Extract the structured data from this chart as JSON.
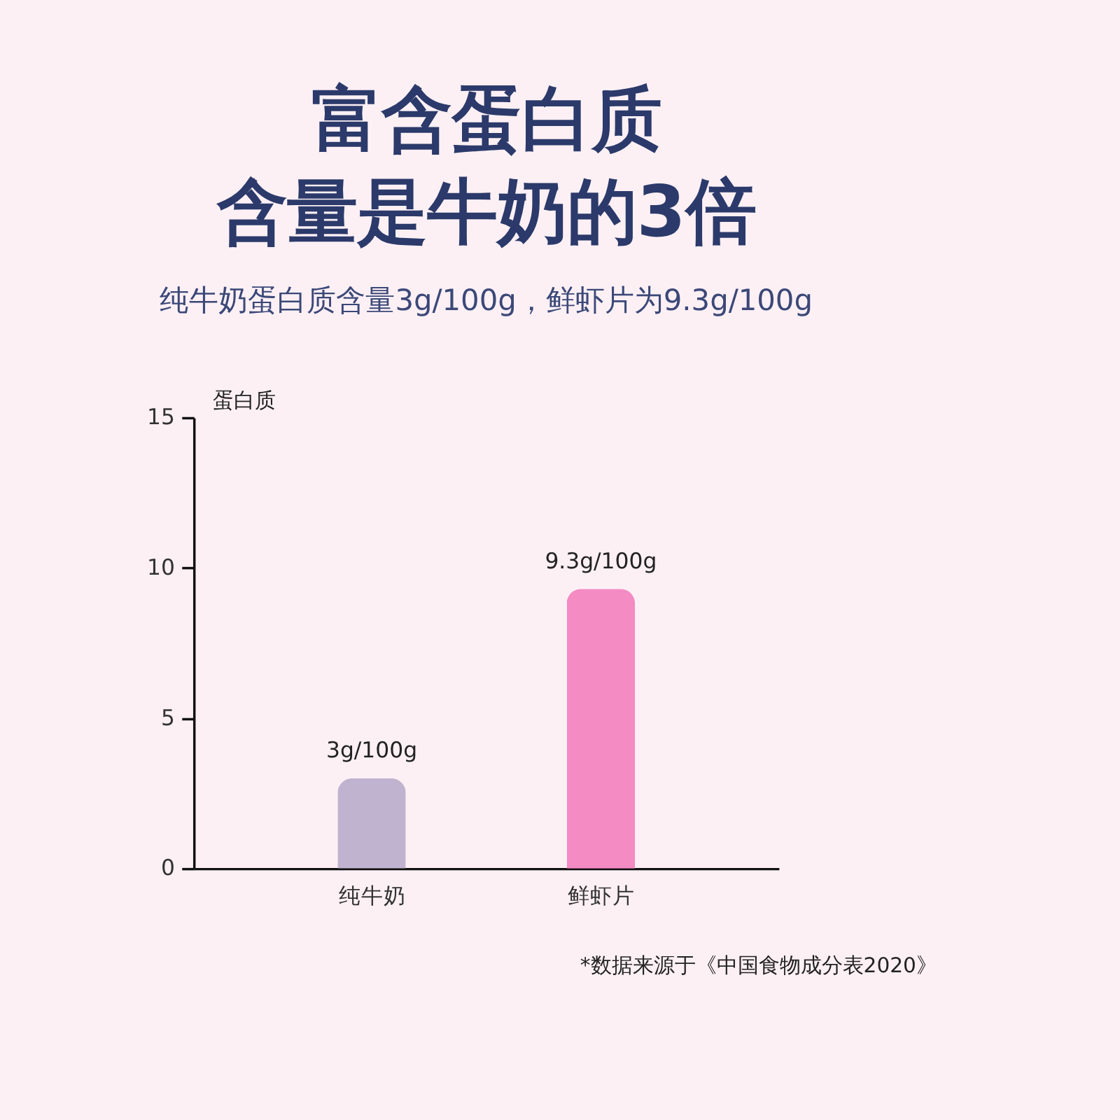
{
  "chart_data": {
    "type": "bar",
    "title": "富含蛋白质含量是牛奶的3倍",
    "subtitle": "纯牛奶蛋白质含量3g/100g，鲜虾片为9.3g/100g",
    "ylabel": "蛋白质",
    "categories": [
      "纯牛奶",
      "鲜虾片"
    ],
    "values": [
      3,
      9.3
    ],
    "colors": [
      "#c0b3d0",
      "#f48bc3"
    ],
    "value_labels": [
      "3g/100g",
      "9.3g/100g"
    ],
    "ylim": [
      0,
      15
    ],
    "yticks": [
      0,
      5,
      10,
      15
    ],
    "grid": false,
    "annotations": [
      "*数据来源于《中国食物成分表2020》"
    ]
  }
}
